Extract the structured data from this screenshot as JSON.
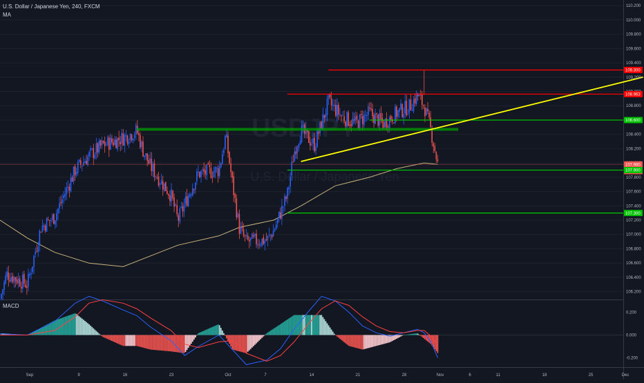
{
  "legend": {
    "symbol_title": "U.S. Dollar / Japanese Yen, 240, FXCM",
    "indicator": "MA",
    "macd_label": "MACD"
  },
  "watermark": {
    "symbol": "USDJPY",
    "description": "U.S. Dollar / Japanese Yen"
  },
  "colors": {
    "background": "#131722",
    "up_candle": "#2962ff",
    "down_candle": "#ef5350",
    "ma_line": "#c9b27c",
    "trendline": "#ffff00",
    "resistance": "#ff0000",
    "support": "#00c000",
    "macd_line": "#2962ff",
    "signal_line": "#ff4040"
  },
  "chart_data": [
    {
      "type": "candlestick",
      "title": "U.S. Dollar / Japanese Yen, 240, FXCM",
      "y_axis": {
        "min": 106.1,
        "max": 110.25,
        "ticks": [
          "110.200",
          "110.000",
          "109.800",
          "109.600",
          "109.400",
          "109.200",
          "109.000",
          "108.800",
          "108.600",
          "108.400",
          "108.200",
          "108.000",
          "107.800",
          "107.600",
          "107.400",
          "107.200",
          "107.000",
          "106.800",
          "106.600",
          "106.400",
          "106.200"
        ]
      },
      "x_axis": {
        "labels": [
          "Sep",
          "9",
          "16",
          "23",
          "Oct",
          "7",
          "14",
          "21",
          "28",
          "Nov",
          "6",
          "11",
          "18",
          "25",
          "Dec"
        ]
      },
      "price_labels": [
        {
          "text": "109.300",
          "value": 109.3,
          "color": "#ff0000"
        },
        {
          "text": "108.963",
          "value": 108.963,
          "color": "#ff0000"
        },
        {
          "text": "108.600",
          "value": 108.6,
          "color": "#00c000"
        },
        {
          "text": "107.980",
          "value": 107.98,
          "color": "#ef5350"
        },
        {
          "text": "01:34:04",
          "value": 107.885,
          "color": "#ef5350"
        },
        {
          "text": "107.900",
          "value": 107.9,
          "color": "#00c000"
        },
        {
          "text": "107.300",
          "value": 107.3,
          "color": "#00c000"
        }
      ],
      "horizontal_levels": [
        {
          "value": 109.3,
          "start_date": "Oct 16",
          "color": "#ff0000"
        },
        {
          "value": 108.963,
          "start_date": "Oct 10",
          "color": "#ff0000"
        },
        {
          "value": 108.6,
          "start_date": "Oct 22",
          "color": "#00c000"
        },
        {
          "value": 107.9,
          "start_date": "Oct 10",
          "color": "#00c000"
        },
        {
          "value": 107.3,
          "start_date": "Oct 10",
          "color": "#00c000"
        }
      ],
      "zone": {
        "value": 108.47,
        "from_date": "Sep 18",
        "to_date": "Nov 4",
        "color": "#00a000"
      },
      "trendline": {
        "from": [
          "Oct 12",
          108.02
        ],
        "to": [
          "Dec 1",
          109.2
        ]
      },
      "path": {
        "dates": [
          "Aug 29",
          "Aug 30",
          "Sep 2",
          "Sep 4",
          "Sep 6",
          "Sep 9",
          "Sep 11",
          "Sep 13",
          "Sep 16",
          "Sep 18",
          "Sep 19",
          "Sep 20",
          "Sep 23",
          "Sep 24",
          "Sep 26",
          "Sep 27",
          "Sep 30",
          "Oct 1",
          "Oct 2",
          "Oct 3",
          "Oct 4",
          "Oct 7",
          "Oct 8",
          "Oct 10",
          "Oct 11",
          "Oct 12",
          "Oct 14",
          "Oct 16",
          "Oct 17",
          "Oct 18",
          "Oct 20",
          "Oct 22",
          "Oct 24",
          "Oct 26",
          "Oct 28",
          "Oct 29",
          "Oct 30",
          "Oct 31",
          "Nov 1"
        ],
        "closes": [
          106.1,
          106.45,
          106.3,
          107.1,
          107.25,
          107.9,
          108.1,
          108.25,
          108.35,
          108.45,
          108.15,
          107.95,
          107.55,
          107.2,
          107.65,
          107.85,
          107.9,
          108.38,
          107.7,
          107.08,
          106.9,
          106.92,
          107.05,
          107.55,
          108.15,
          108.45,
          108.25,
          108.85,
          108.75,
          108.65,
          108.55,
          108.7,
          108.55,
          108.7,
          108.8,
          108.95,
          108.8,
          108.45,
          107.98
        ]
      },
      "ma_line": {
        "dates": [
          "Aug 29",
          "Sep 2",
          "Sep 6",
          "Sep 11",
          "Sep 16",
          "Sep 20",
          "Sep 24",
          "Sep 30",
          "Oct 3",
          "Oct 8",
          "Oct 12",
          "Oct 17",
          "Oct 22",
          "Oct 26",
          "Oct 29",
          "Oct 30",
          "Nov 1"
        ],
        "values": [
          107.2,
          106.95,
          106.75,
          106.6,
          106.55,
          106.7,
          106.85,
          106.98,
          107.1,
          107.2,
          107.4,
          107.68,
          107.8,
          107.92,
          107.98,
          108.0,
          107.98
        ]
      }
    },
    {
      "type": "macd",
      "y_axis": {
        "min": -0.27,
        "max": 0.3,
        "ticks": [
          "0.200",
          "0.000",
          "-0.200"
        ]
      },
      "macd": {
        "dates": [
          "Aug 29",
          "Sep 2",
          "Sep 6",
          "Sep 9",
          "Sep 11",
          "Sep 13",
          "Sep 16",
          "Sep 18",
          "Sep 20",
          "Sep 23",
          "Sep 25",
          "Sep 27",
          "Sep 30",
          "Oct 2",
          "Oct 4",
          "Oct 7",
          "Oct 9",
          "Oct 11",
          "Oct 13",
          "Oct 15",
          "Oct 17",
          "Oct 19",
          "Oct 21",
          "Oct 23",
          "Oct 25",
          "Oct 27",
          "Oct 29",
          "Oct 30",
          "Oct 31",
          "Nov 1"
        ],
        "values": [
          0.01,
          0.0,
          0.12,
          0.28,
          0.34,
          0.3,
          0.22,
          0.17,
          0.07,
          -0.05,
          -0.18,
          -0.1,
          0.0,
          -0.13,
          -0.26,
          -0.22,
          -0.12,
          0.05,
          0.2,
          0.34,
          0.3,
          0.2,
          0.08,
          0.02,
          -0.01,
          0.02,
          0.05,
          0.02,
          -0.06,
          -0.2
        ]
      },
      "signal": {
        "dates": [
          "Aug 29",
          "Sep 2",
          "Sep 6",
          "Sep 9",
          "Sep 11",
          "Sep 13",
          "Sep 16",
          "Sep 18",
          "Sep 20",
          "Sep 23",
          "Sep 25",
          "Sep 27",
          "Sep 30",
          "Oct 2",
          "Oct 4",
          "Oct 7",
          "Oct 9",
          "Oct 11",
          "Oct 13",
          "Oct 15",
          "Oct 17",
          "Oct 19",
          "Oct 21",
          "Oct 23",
          "Oct 25",
          "Oct 27",
          "Oct 29",
          "Oct 30",
          "Oct 31",
          "Nov 1"
        ],
        "values": [
          0.0,
          0.0,
          0.04,
          0.16,
          0.28,
          0.31,
          0.28,
          0.23,
          0.15,
          0.04,
          -0.08,
          -0.11,
          -0.06,
          -0.05,
          -0.16,
          -0.23,
          -0.18,
          -0.06,
          0.09,
          0.23,
          0.3,
          0.26,
          0.16,
          0.08,
          0.03,
          0.02,
          0.04,
          0.04,
          -0.01,
          -0.1
        ]
      }
    }
  ]
}
